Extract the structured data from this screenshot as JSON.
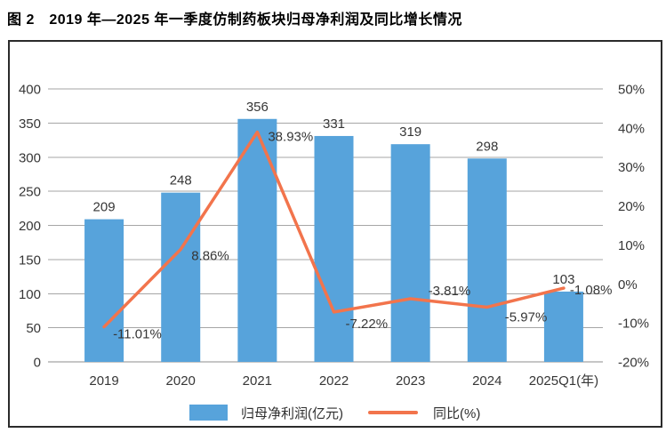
{
  "page": {
    "title": "图 2　2019 年—2025 年一季度仿制药板块归母净利润及同比增长情况"
  },
  "chart_data": {
    "type": "combo",
    "title": "2019 年—2025 年一季度仿制药板块归母净利润及同比增长情况",
    "categories": [
      "2019",
      "2020",
      "2021",
      "2022",
      "2023",
      "2024",
      "2025Q1(年)"
    ],
    "series": [
      {
        "name": "归母净利润(亿元)",
        "type": "bar",
        "axis": "left",
        "color": "#57A3DB",
        "values": [
          209,
          248,
          356,
          331,
          319,
          298,
          103
        ],
        "labels": [
          "209",
          "248",
          "356",
          "331",
          "319",
          "298",
          "103"
        ]
      },
      {
        "name": "同比(%)",
        "type": "line",
        "axis": "right",
        "color": "#F2744C",
        "values": [
          -11.01,
          8.86,
          38.93,
          -7.22,
          -3.81,
          -5.97,
          -1.08
        ],
        "labels": [
          "-11.01%",
          "8.86%",
          "38.93%",
          "-7.22%",
          "-3.81%",
          "-5.97%",
          "-1.08%"
        ]
      }
    ],
    "left_axis": {
      "min": 0,
      "max": 400,
      "step": 50,
      "tick_labels": [
        "0",
        "50",
        "100",
        "150",
        "200",
        "250",
        "300",
        "350",
        "400"
      ]
    },
    "right_axis": {
      "min": -20,
      "max": 50,
      "step": 10,
      "tick_labels": [
        "-20%",
        "-10%",
        "0%",
        "10%",
        "20%",
        "30%",
        "40%",
        "50%"
      ]
    },
    "grid": true,
    "gridline_color": "#a6a6a6",
    "label_color": "#363636",
    "legend_position": "bottom"
  },
  "legend": {
    "bar_label": "归母净利润(亿元)",
    "line_label": "同比(%)"
  }
}
